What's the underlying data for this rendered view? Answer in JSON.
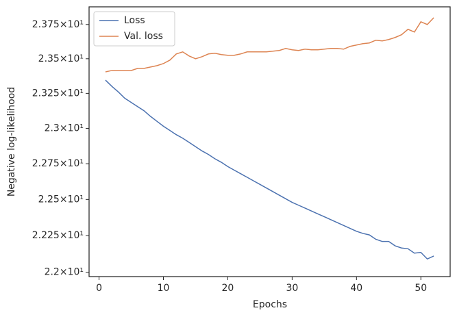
{
  "chart_data": {
    "type": "line",
    "xlabel": "Epochs",
    "ylabel": "Negative log-likelihood",
    "x": [
      1,
      2,
      3,
      4,
      5,
      6,
      7,
      8,
      9,
      10,
      11,
      12,
      13,
      14,
      15,
      16,
      17,
      18,
      19,
      20,
      21,
      22,
      23,
      24,
      25,
      26,
      27,
      28,
      29,
      30,
      31,
      32,
      33,
      34,
      35,
      36,
      37,
      38,
      39,
      40,
      41,
      42,
      43,
      44,
      45,
      46,
      47,
      48,
      49,
      50,
      51,
      52
    ],
    "series": [
      {
        "name": "Loss",
        "color": "#4c72b0",
        "values": [
          23.345,
          23.3,
          23.26,
          23.215,
          23.185,
          23.155,
          23.125,
          23.085,
          23.05,
          23.015,
          22.985,
          22.955,
          22.93,
          22.9,
          22.87,
          22.84,
          22.815,
          22.785,
          22.76,
          22.73,
          22.705,
          22.68,
          22.655,
          22.63,
          22.605,
          22.58,
          22.555,
          22.53,
          22.505,
          22.48,
          22.46,
          22.44,
          22.42,
          22.4,
          22.38,
          22.36,
          22.34,
          22.32,
          22.3,
          22.28,
          22.265,
          22.255,
          22.225,
          22.21,
          22.21,
          22.18,
          22.165,
          22.16,
          22.13,
          22.135,
          22.09,
          22.11
        ]
      },
      {
        "name": "Val. loss",
        "color": "#dd8452",
        "values": [
          23.405,
          23.415,
          23.415,
          23.415,
          23.415,
          23.43,
          23.43,
          23.44,
          23.45,
          23.465,
          23.49,
          23.535,
          23.55,
          23.52,
          23.5,
          23.515,
          23.535,
          23.54,
          23.53,
          23.525,
          23.525,
          23.535,
          23.55,
          23.55,
          23.55,
          23.55,
          23.555,
          23.56,
          23.575,
          23.565,
          23.56,
          23.57,
          23.565,
          23.565,
          23.57,
          23.575,
          23.575,
          23.57,
          23.59,
          23.6,
          23.61,
          23.615,
          23.635,
          23.63,
          23.64,
          23.655,
          23.675,
          23.715,
          23.695,
          23.77,
          23.75,
          23.8
        ]
      }
    ],
    "xlim": [
      -1.55,
      54.55
    ],
    "xticks": [
      0,
      10,
      20,
      30,
      40,
      50
    ],
    "ylim": [
      21.97,
      23.88
    ],
    "log_y": true,
    "yticks": [
      {
        "value": 22.0,
        "label": "2.2×10¹"
      },
      {
        "value": 22.25,
        "label": "2.225×10¹"
      },
      {
        "value": 22.5,
        "label": "2.25×10¹"
      },
      {
        "value": 22.75,
        "label": "2.275×10¹"
      },
      {
        "value": 23.0,
        "label": "2.3×10¹"
      },
      {
        "value": 23.25,
        "label": "2.325×10¹"
      },
      {
        "value": 23.5,
        "label": "2.35×10¹"
      },
      {
        "value": 23.75,
        "label": "2.375×10¹"
      }
    ],
    "legend": "upper left",
    "grid": false
  }
}
